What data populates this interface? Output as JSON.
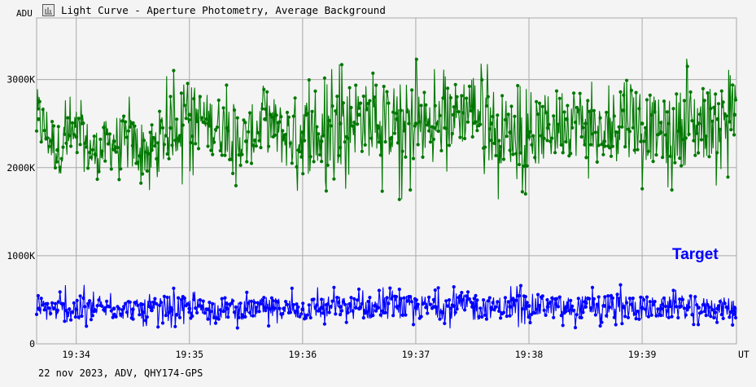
{
  "header": {
    "title": "Light Curve - Aperture Photometry, Average Background",
    "icon": "light-curve-icon"
  },
  "footer": {
    "text": "22 nov 2023, ADV, QHY174-GPS"
  },
  "colors": {
    "background": "#f4f4f4",
    "grid": "#a9a9a9",
    "comparison_series": "#007800",
    "target_series": "#0000ff"
  },
  "chart_data": {
    "type": "line",
    "markers": true,
    "grid": true,
    "y_unit_label": "ADU",
    "x_unit_label": "UT",
    "x_range": [
      "19:33:39",
      "19:39:50"
    ],
    "ylim": [
      0,
      3700
    ],
    "y_unit": "K ADU",
    "x_ticks": [
      "19:34",
      "19:35",
      "19:36",
      "19:37",
      "19:38",
      "19:39"
    ],
    "y_ticks": [
      {
        "value": 0,
        "label": "0"
      },
      {
        "value": 1000,
        "label": "1000K"
      },
      {
        "value": 2000,
        "label": "2000K"
      },
      {
        "value": 3000,
        "label": "3000K"
      }
    ],
    "annotation": "Target",
    "series": [
      {
        "name": "",
        "color": "#007800",
        "x": [
          "19:33:40",
          "19:33:50",
          "19:34:00",
          "19:34:10",
          "19:34:20",
          "19:34:30",
          "19:34:40",
          "19:34:50",
          "19:35:00",
          "19:35:10",
          "19:35:20",
          "19:35:30",
          "19:35:40",
          "19:35:50",
          "19:36:00",
          "19:36:10",
          "19:36:20",
          "19:36:30",
          "19:36:40",
          "19:36:50",
          "19:37:00",
          "19:37:10",
          "19:37:20",
          "19:37:30",
          "19:37:40",
          "19:37:50",
          "19:38:00",
          "19:38:10",
          "19:38:20",
          "19:38:30",
          "19:38:40",
          "19:38:50",
          "19:39:00",
          "19:39:10",
          "19:39:20",
          "19:39:30",
          "19:39:40",
          "19:39:49"
        ],
        "values": [
          2550,
          2200,
          2350,
          2150,
          2300,
          2250,
          2200,
          2450,
          2600,
          2500,
          2450,
          2300,
          2550,
          2350,
          2400,
          2300,
          2500,
          2600,
          2450,
          2550,
          2500,
          2450,
          2600,
          2700,
          2500,
          2400,
          2350,
          2450,
          2550,
          2500,
          2300,
          2650,
          2500,
          2400,
          2450,
          2500,
          2550,
          2600
        ],
        "highs": [
          2950,
          2800,
          2900,
          2850,
          2950,
          2850,
          2950,
          3150,
          3050,
          3000,
          3050,
          2900,
          3050,
          3100,
          3200,
          2950,
          3450,
          3150,
          3100,
          3100,
          3350,
          3150,
          3100,
          3300,
          3250,
          2950,
          3000,
          3200,
          3200,
          3150,
          3050,
          3550,
          3200,
          3050,
          3250,
          3300,
          3250,
          3150
        ],
        "lows": [
          1700,
          1750,
          1700,
          1750,
          1800,
          1700,
          1750,
          1800,
          1700,
          1750,
          1800,
          1700,
          1750,
          1800,
          1400,
          1700,
          1750,
          1550,
          1750,
          1550,
          1700,
          1750,
          1750,
          1800,
          1600,
          1650,
          1700,
          1750,
          1700,
          1700,
          1800,
          1650,
          1700,
          1750,
          1650,
          1700,
          1800,
          1750
        ]
      },
      {
        "name": "Target",
        "color": "#0000ff",
        "x": [
          "19:33:40",
          "19:33:50",
          "19:34:00",
          "19:34:10",
          "19:34:20",
          "19:34:30",
          "19:34:40",
          "19:34:50",
          "19:35:00",
          "19:35:10",
          "19:35:20",
          "19:35:30",
          "19:35:40",
          "19:35:50",
          "19:36:00",
          "19:36:10",
          "19:36:20",
          "19:36:30",
          "19:36:40",
          "19:36:50",
          "19:37:00",
          "19:37:10",
          "19:37:20",
          "19:37:30",
          "19:37:40",
          "19:37:50",
          "19:38:00",
          "19:38:10",
          "19:38:20",
          "19:38:30",
          "19:38:40",
          "19:38:50",
          "19:39:00",
          "19:39:10",
          "19:39:20",
          "19:39:30",
          "19:39:40",
          "19:39:49"
        ],
        "values": [
          400,
          380,
          390,
          380,
          400,
          390,
          380,
          410,
          400,
          390,
          400,
          390,
          410,
          400,
          390,
          410,
          420,
          400,
          410,
          420,
          410,
          420,
          430,
          420,
          410,
          420,
          430,
          420,
          410,
          420,
          430,
          420,
          410,
          400,
          420,
          410,
          400,
          410
        ],
        "highs": [
          600,
          600,
          780,
          600,
          600,
          600,
          600,
          740,
          600,
          620,
          620,
          600,
          620,
          640,
          640,
          660,
          640,
          640,
          660,
          660,
          660,
          680,
          680,
          820,
          640,
          660,
          680,
          660,
          640,
          660,
          680,
          700,
          680,
          620,
          680,
          640,
          620,
          620
        ],
        "lows": [
          100,
          150,
          180,
          150,
          160,
          180,
          150,
          180,
          160,
          180,
          150,
          180,
          180,
          200,
          200,
          180,
          190,
          170,
          170,
          180,
          180,
          160,
          150,
          180,
          200,
          180,
          160,
          190,
          180,
          180,
          200,
          180,
          170,
          190,
          170,
          200,
          180,
          160
        ]
      }
    ]
  }
}
